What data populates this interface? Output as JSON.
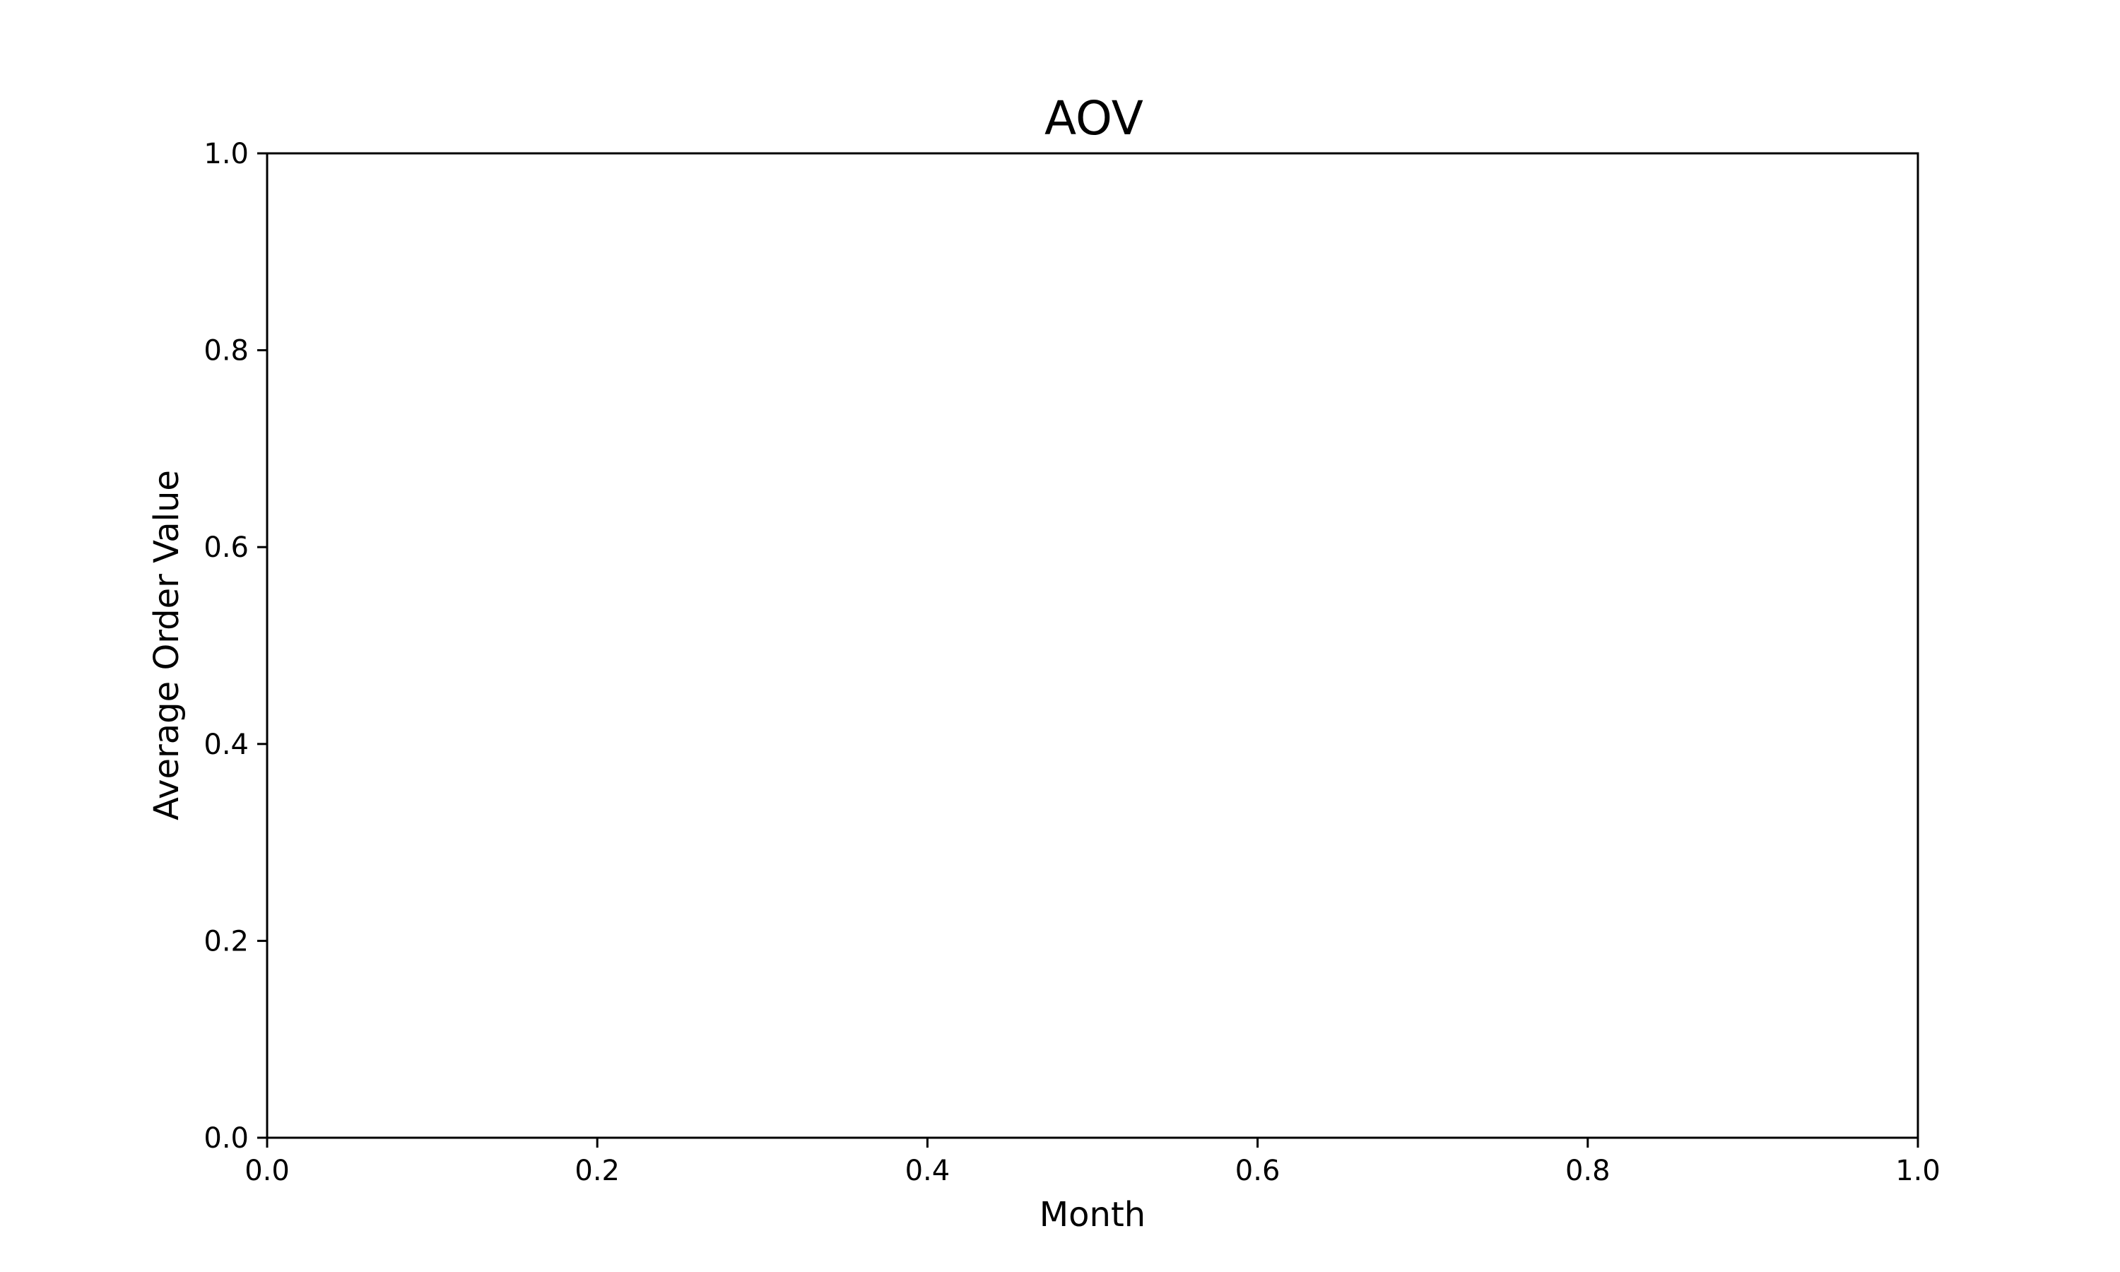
{
  "chart_data": {
    "type": "line",
    "title": "AOV",
    "xlabel": "Month",
    "ylabel": "Average Order Value",
    "xlim": [
      0.0,
      1.0
    ],
    "ylim": [
      0.0,
      1.0
    ],
    "x_ticks": [
      "0.0",
      "0.2",
      "0.4",
      "0.6",
      "0.8",
      "1.0"
    ],
    "y_ticks": [
      "0.0",
      "0.2",
      "0.4",
      "0.6",
      "0.8",
      "1.0"
    ],
    "series": [],
    "grid": false,
    "legend": "none",
    "colors": {
      "axis": "#000000",
      "background": "#ffffff"
    }
  }
}
